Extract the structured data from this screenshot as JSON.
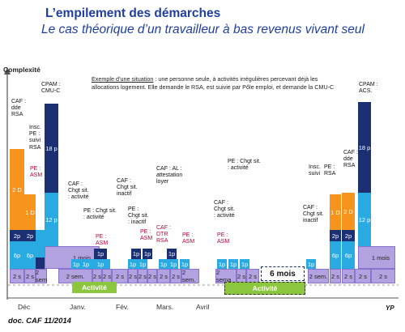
{
  "title": "L’empilement des démarches",
  "subtitle": "Le cas théorique d’un travailleur à bas revenus vivant seul",
  "y_axis_label": "Complexité",
  "example_prefix": "Exemple d’une situation",
  "example_text": " : une personne seule, à activités irrégulières percevant déjà les allocations logement. Elle demande le RSA, est suivie par Pôle emploi, et demande la CMU-C",
  "months": [
    "Déc",
    "Janv.",
    "Fév.",
    "Mars.",
    "Avril"
  ],
  "footer": "doc. CAF 11/2014",
  "author": "YP",
  "activity_label": "Activité",
  "six_months_label": "6 mois",
  "labels": {
    "caf_dde_rsa_1": "CAF :\ndde\nRSA",
    "insc_pe": "Insc.\nPE :\nsuivi\nRSA",
    "pe_asm_1": "PE :\nASM",
    "cpam_cmuc": "CPAM :\nCMU-C",
    "caf_chgt_1": "CAF :\nChgt sit.\n: activité",
    "pe_chgt_1": "PE : Chgt sit.\n: activité",
    "pe_asm_2": "PE :\nASM",
    "caf_chgt_2": "CAF :\nChgt sit.\ninactif",
    "pe_chgt_2": "PE :\nChgt sit.\n: inactif",
    "pe_asm_3": "PE :\nASM",
    "caf_dtr": "CAF :\nDTR\nRSA",
    "caf_al": "CAF : AL :\nattestation\nloyer",
    "pe_asm_4": "PE :\nASM",
    "pe_chgt_3": "PE : Chgt sit.\n: activité",
    "caf_chgt_3": "CAF :\nChgt sit.\n: activité",
    "pe_asm_5": "PE :\nASM",
    "caf_chgt_4": "CAF :\nChgt sit.\ninactif",
    "insc_suivi": "Insc.\nsuivi",
    "pe_rsa": "PE :\nRSA",
    "caf_dde_rsa_2": "CAF :\ndde\nRSA",
    "cpam_acs": "CPAM :\nACS."
  },
  "segments": {
    "2s": "2 s",
    "2se": "2 se",
    "2sem": "2 sem.",
    "1p": "1p",
    "2p": "2p",
    "6p": "6p",
    "12p": "12 p",
    "18p": "18 p",
    "1D": "1 D",
    "2D": "2 D",
    "1mois": "1 mois",
    "2sema": "2 sema",
    "2sem_short": "2 sem"
  },
  "colors": {
    "title": "#1f3fa0",
    "orange": "#f7941d",
    "cyan": "#29abe2",
    "navy": "#1b2f73",
    "lavender": "#b3a2e0",
    "lavender_border": "#8a72cf",
    "green": "#8cc63f",
    "red_label": "#c0003a"
  }
}
